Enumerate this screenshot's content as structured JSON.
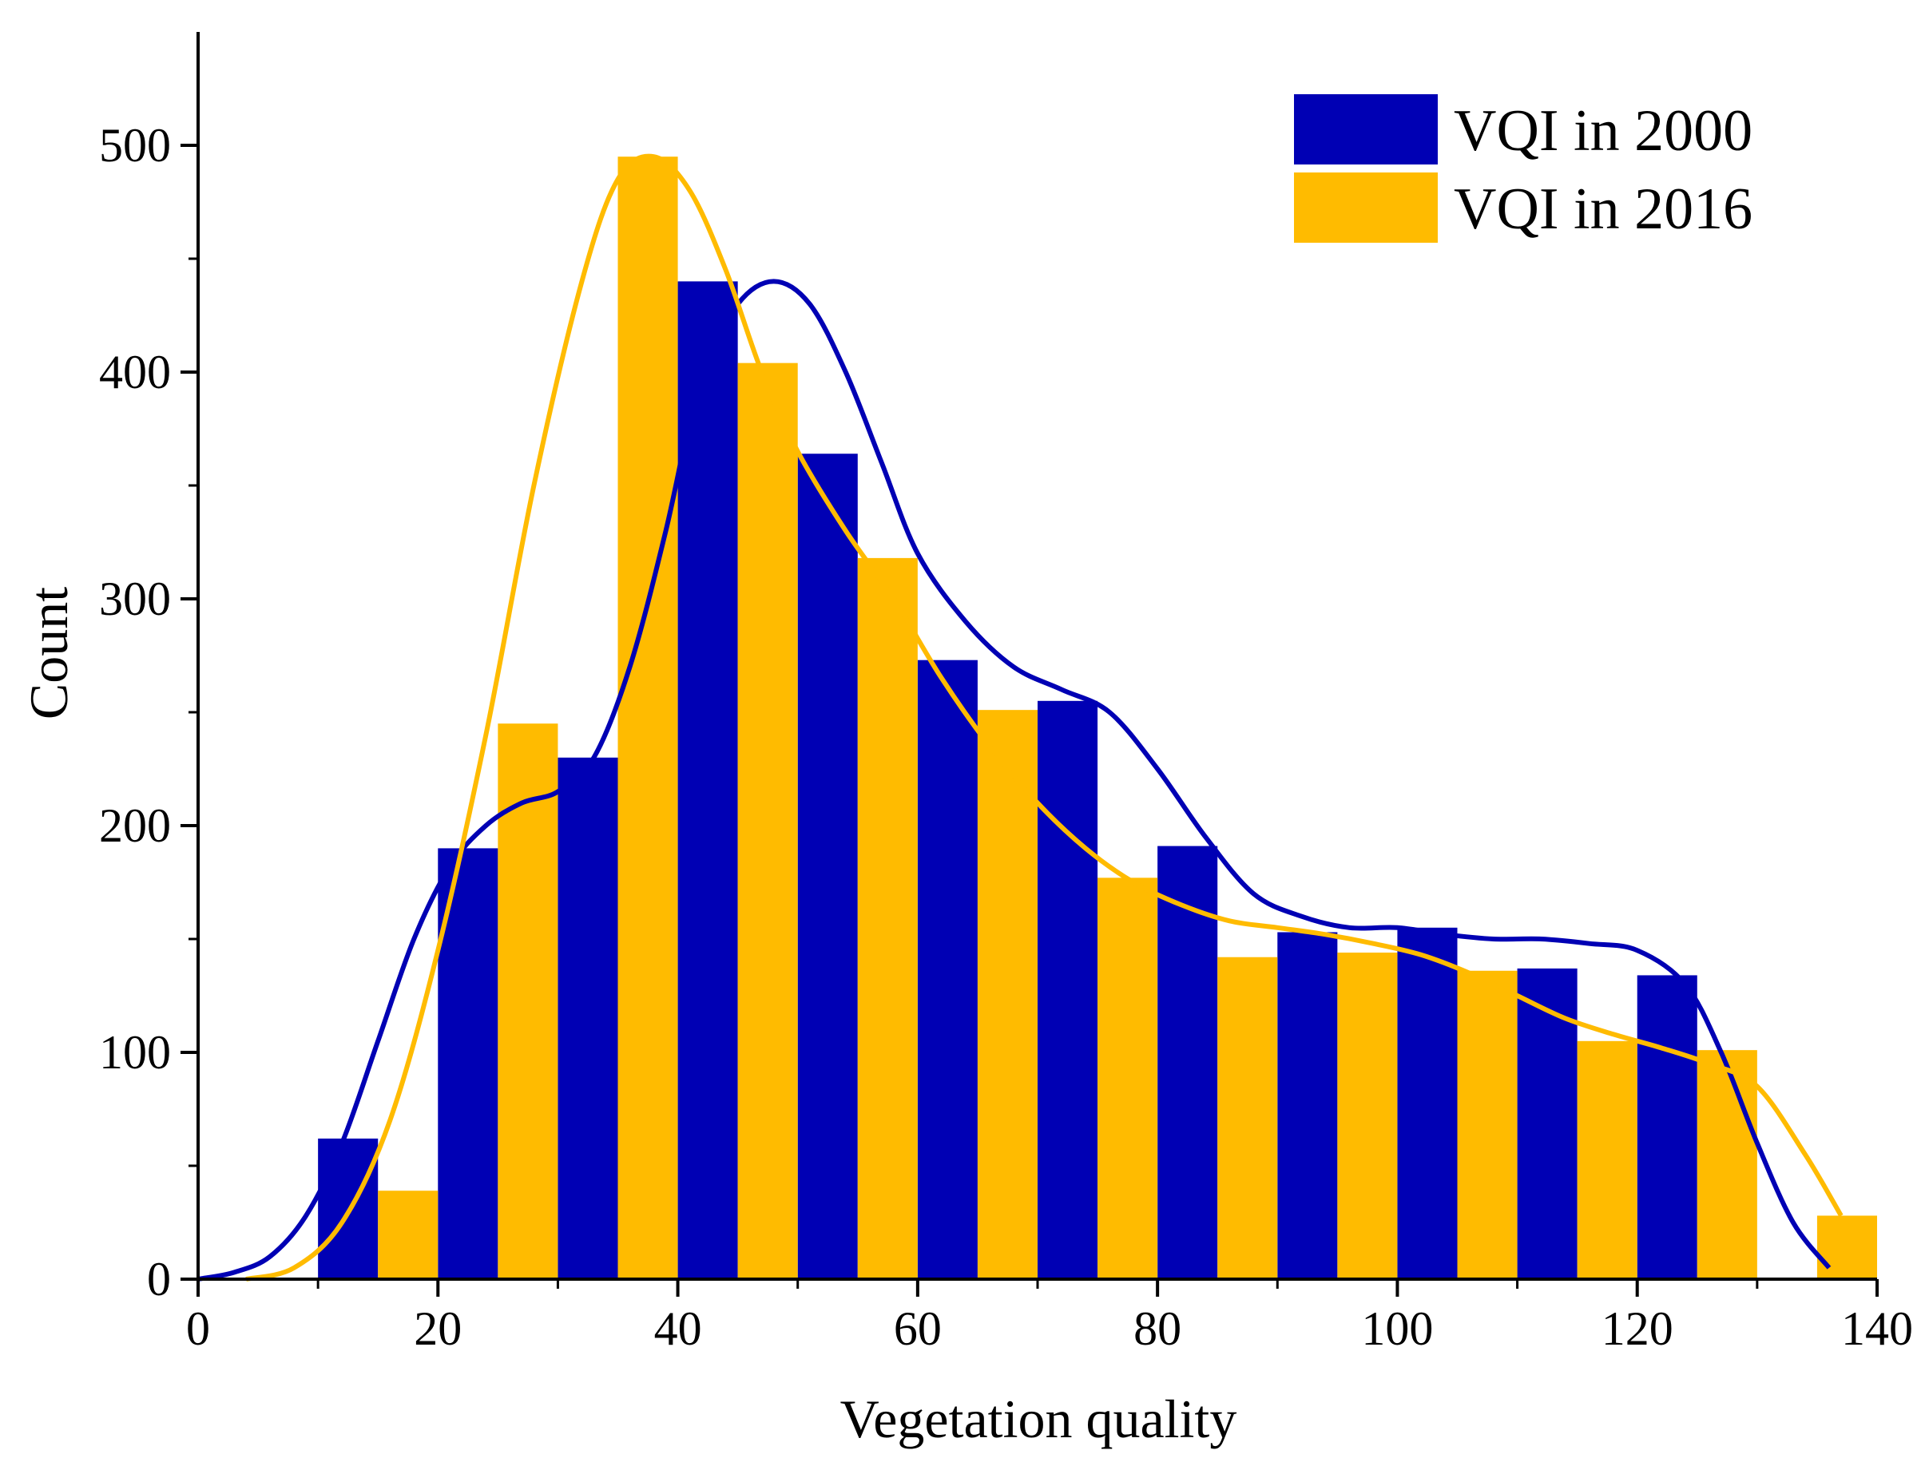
{
  "chart_data": {
    "type": "bar",
    "xlabel": "Vegetation quality",
    "ylabel": "Count",
    "xlim": [
      0,
      140
    ],
    "ylim": [
      0,
      550
    ],
    "xticks": [
      0,
      20,
      40,
      60,
      80,
      100,
      120,
      140
    ],
    "yticks": [
      0,
      100,
      200,
      300,
      400,
      500
    ],
    "legend_position": "top-right",
    "series": [
      {
        "name": "VQI in 2000",
        "color": "#0000b4",
        "bin_centers": [
          12.5,
          22.5,
          32.5,
          42.5,
          52.5,
          62.5,
          72.5,
          82.5,
          92.5,
          102.5,
          112.5,
          122.5
        ],
        "values": [
          62,
          190,
          230,
          440,
          364,
          273,
          255,
          191,
          153,
          155,
          137,
          134
        ],
        "curve": {
          "x": [
            0,
            3,
            6,
            9,
            12,
            15,
            18,
            21,
            24,
            27,
            30,
            33,
            36,
            39,
            42,
            45,
            48,
            51,
            54,
            57,
            60,
            64,
            68,
            72,
            76,
            80,
            84,
            88,
            92,
            96,
            100,
            104,
            108,
            112,
            116,
            120,
            124,
            127,
            130,
            133,
            136
          ],
          "y": [
            0,
            3,
            10,
            28,
            60,
            105,
            150,
            182,
            200,
            210,
            215,
            230,
            270,
            330,
            400,
            430,
            440,
            430,
            400,
            360,
            320,
            290,
            270,
            260,
            250,
            225,
            195,
            170,
            160,
            155,
            155,
            152,
            150,
            150,
            148,
            145,
            130,
            100,
            60,
            25,
            5
          ]
        }
      },
      {
        "name": "VQI in 2016",
        "color": "#ffbb00",
        "bin_centers": [
          17.5,
          27.5,
          37.5,
          47.5,
          57.5,
          67.5,
          77.5,
          87.5,
          97.5,
          107.5,
          117.5,
          127.5,
          137.5
        ],
        "values": [
          39,
          245,
          495,
          404,
          318,
          251,
          177,
          142,
          144,
          136,
          105,
          101,
          28
        ],
        "curve": {
          "x": [
            4,
            8,
            12,
            16,
            20,
            24,
            28,
            32,
            35,
            38,
            41,
            44,
            47,
            50,
            54,
            58,
            62,
            66,
            70,
            74,
            78,
            82,
            86,
            90,
            94,
            98,
            102,
            106,
            110,
            114,
            118,
            122,
            126,
            130,
            134,
            137
          ],
          "y": [
            0,
            5,
            25,
            70,
            145,
            240,
            350,
            440,
            485,
            495,
            480,
            445,
            400,
            365,
            330,
            300,
            265,
            235,
            210,
            190,
            175,
            165,
            158,
            155,
            152,
            148,
            143,
            135,
            125,
            115,
            108,
            102,
            95,
            85,
            55,
            28
          ]
        }
      }
    ]
  }
}
